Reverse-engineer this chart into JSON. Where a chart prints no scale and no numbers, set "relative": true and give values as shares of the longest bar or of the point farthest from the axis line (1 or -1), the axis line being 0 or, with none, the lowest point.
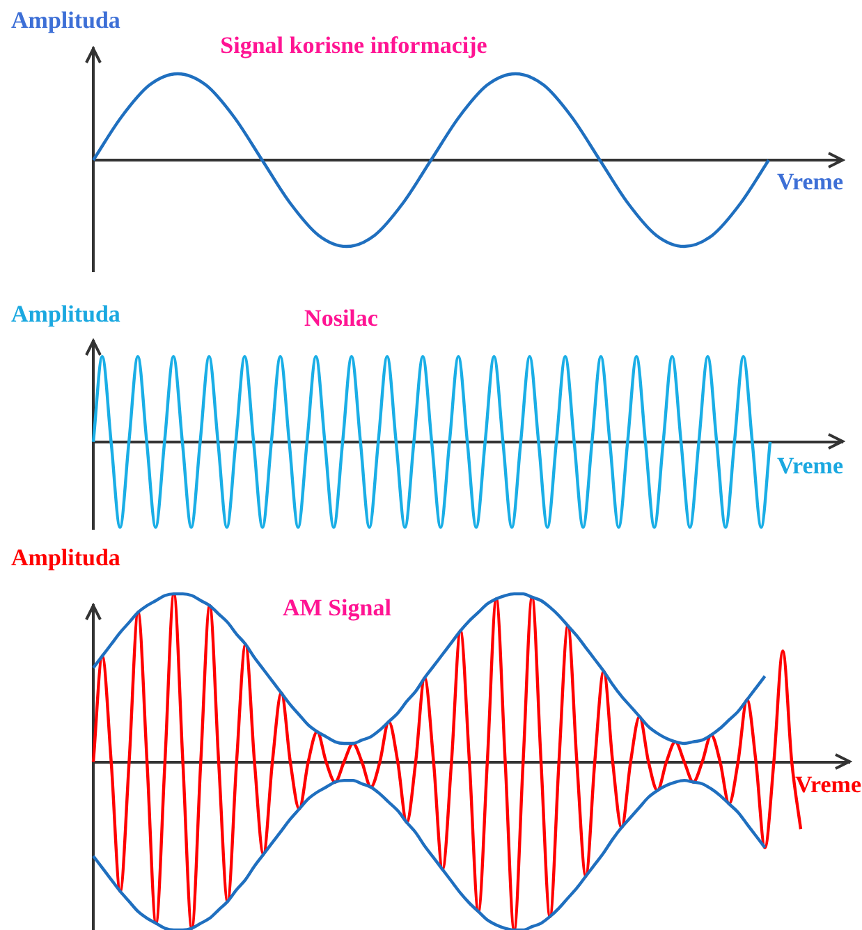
{
  "chart_data": [
    {
      "type": "line",
      "relative": true,
      "title": "Signal korisne informacije",
      "xlabel": "Vreme",
      "ylabel": "Amplituda",
      "marker": "none",
      "line_style": "solid",
      "categories": [
        null,
        null,
        null,
        null,
        null,
        null,
        null,
        null,
        null,
        null,
        null,
        null,
        null,
        null,
        null,
        null,
        null,
        null,
        null,
        null,
        null,
        null,
        null,
        null,
        null
      ],
      "series": [
        {
          "color": "#1f6fbf",
          "values": [
            0,
            0.5,
            0.87,
            1,
            0.87,
            0.5,
            0,
            -0.5,
            -0.87,
            -1,
            -0.87,
            -0.5,
            0,
            0.5,
            0.87,
            1,
            0.87,
            0.5,
            0,
            -0.5,
            -0.87,
            -1,
            -0.87,
            -0.5,
            0
          ]
        }
      ]
    },
    {
      "type": "line",
      "relative": true,
      "title": "Nosilac",
      "xlabel": "Vreme",
      "ylabel": "Amplituda",
      "marker": "none",
      "line_style": "solid",
      "categories": [
        null,
        null,
        null,
        null,
        null,
        null,
        null,
        null,
        null,
        null,
        null,
        null,
        null,
        null,
        null,
        null,
        null,
        null,
        null,
        null,
        null,
        null,
        null,
        null,
        null,
        null,
        null,
        null,
        null,
        null,
        null,
        null,
        null,
        null,
        null,
        null,
        null,
        null,
        null,
        null,
        null,
        null,
        null,
        null,
        null,
        null,
        null,
        null,
        null,
        null,
        null,
        null,
        null,
        null,
        null,
        null,
        null,
        null,
        null,
        null,
        null,
        null,
        null,
        null,
        null,
        null,
        null,
        null,
        null,
        null,
        null,
        null,
        null,
        null,
        null,
        null,
        null
      ],
      "series": [
        {
          "color": "#1aaee6",
          "values": [
            0,
            1,
            0,
            -1,
            0,
            1,
            0,
            -1,
            0,
            1,
            0,
            -1,
            0,
            1,
            0,
            -1,
            0,
            1,
            0,
            -1,
            0,
            1,
            0,
            -1,
            0,
            1,
            0,
            -1,
            0,
            1,
            0,
            -1,
            0,
            1,
            0,
            -1,
            0,
            1,
            0,
            -1,
            0,
            1,
            0,
            -1,
            0,
            1,
            0,
            -1,
            0,
            1,
            0,
            -1,
            0,
            1,
            0,
            -1,
            0,
            1,
            0,
            -1,
            0,
            1,
            0,
            -1,
            0,
            1,
            0,
            -1,
            0,
            1,
            0,
            -1,
            0,
            1,
            0,
            -1,
            0
          ]
        }
      ]
    },
    {
      "type": "line",
      "relative": true,
      "title": "AM Signal",
      "xlabel": "Vreme",
      "ylabel": "Amplituda",
      "marker": "none",
      "line_style": "solid",
      "categories": [
        null,
        null,
        null,
        null,
        null,
        null,
        null,
        null,
        null,
        null,
        null,
        null,
        null,
        null,
        null,
        null,
        null,
        null,
        null,
        null,
        null,
        null,
        null,
        null,
        null,
        null,
        null,
        null,
        null,
        null,
        null,
        null,
        null,
        null,
        null,
        null,
        null,
        null,
        null,
        null,
        null,
        null,
        null,
        null,
        null,
        null,
        null,
        null,
        null,
        null,
        null,
        null,
        null,
        null,
        null,
        null,
        null,
        null,
        null,
        null,
        null,
        null,
        null,
        null,
        null,
        null,
        null,
        null,
        null,
        null,
        null,
        null,
        null,
        null,
        null,
        null,
        null,
        null,
        null,
        null
      ],
      "series": [
        {
          "color": "#1f6fbf",
          "values": [
            0.56,
            0.63,
            0.7,
            0.77,
            0.83,
            0.89,
            0.93,
            0.96,
            0.99,
            1,
            1,
            0.99,
            0.96,
            0.93,
            0.88,
            0.83,
            0.76,
            0.7,
            0.62,
            0.55,
            0.48,
            0.41,
            0.34,
            0.28,
            0.22,
            0.18,
            0.15,
            0.12,
            0.11,
            0.11,
            0.13,
            0.15,
            0.19,
            0.24,
            0.29,
            0.36,
            0.42,
            0.5,
            0.57,
            0.64,
            0.71,
            0.78,
            0.84,
            0.89,
            0.94,
            0.97,
            0.99,
            1,
            1,
            0.98,
            0.96,
            0.92,
            0.87,
            0.81,
            0.75,
            0.68,
            0.61,
            0.54,
            0.46,
            0.39,
            0.33,
            0.27,
            0.21,
            0.17,
            0.14,
            0.12,
            0.11,
            0.12,
            0.13,
            0.16,
            0.2,
            0.25,
            0.3,
            0.37,
            0.44,
            0.51,
            null,
            null,
            null,
            null
          ]
        },
        {
          "color": "#1f6fbf",
          "values": [
            -0.56,
            -0.63,
            -0.7,
            -0.77,
            -0.83,
            -0.89,
            -0.93,
            -0.96,
            -0.99,
            -1,
            -1,
            -0.99,
            -0.96,
            -0.93,
            -0.88,
            -0.83,
            -0.76,
            -0.7,
            -0.62,
            -0.55,
            -0.48,
            -0.41,
            -0.34,
            -0.28,
            -0.22,
            -0.18,
            -0.15,
            -0.12,
            -0.11,
            -0.11,
            -0.13,
            -0.15,
            -0.19,
            -0.24,
            -0.29,
            -0.36,
            -0.42,
            -0.5,
            -0.57,
            -0.64,
            -0.71,
            -0.78,
            -0.84,
            -0.89,
            -0.94,
            -0.97,
            -0.99,
            -1,
            -1,
            -0.98,
            -0.96,
            -0.92,
            -0.87,
            -0.81,
            -0.75,
            -0.68,
            -0.61,
            -0.54,
            -0.46,
            -0.39,
            -0.33,
            -0.27,
            -0.21,
            -0.17,
            -0.14,
            -0.12,
            -0.11,
            -0.12,
            -0.13,
            -0.16,
            -0.2,
            -0.25,
            -0.3,
            -0.37,
            -0.44,
            -0.51,
            null,
            null,
            null,
            null
          ]
        },
        {
          "color": "#ff0000",
          "values": [
            0,
            0.63,
            0,
            -0.77,
            0,
            0.89,
            0,
            -0.96,
            0,
            1,
            0,
            -0.99,
            0,
            0.93,
            0,
            -0.83,
            0,
            0.7,
            0,
            -0.55,
            0,
            0.41,
            0,
            -0.28,
            0,
            0.18,
            0,
            -0.12,
            0,
            0.11,
            0,
            -0.15,
            0,
            0.24,
            0,
            -0.36,
            0,
            0.5,
            0,
            -0.64,
            0,
            0.78,
            0,
            -0.89,
            0,
            0.97,
            0,
            -1,
            0,
            0.98,
            0,
            -0.92,
            0,
            0.81,
            0,
            -0.68,
            0,
            0.54,
            0,
            -0.39,
            0,
            0.27,
            0,
            -0.17,
            0,
            0.12,
            0,
            -0.12,
            0,
            0.16,
            0,
            -0.25,
            0,
            0.37,
            0,
            -0.51,
            0,
            0.66,
            0,
            -0.4
          ]
        }
      ]
    }
  ]
}
